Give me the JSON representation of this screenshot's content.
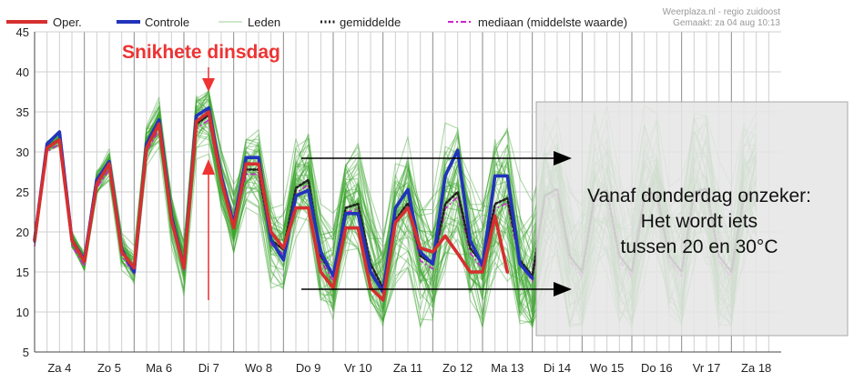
{
  "credit": {
    "line1": "Weerplaza.nl - regio zuidoost",
    "line2": "Gemaakt: za 04 aug 10:13"
  },
  "legend": [
    {
      "label": "Oper.",
      "style": "oper"
    },
    {
      "label": "Controle",
      "style": "controle"
    },
    {
      "label": "Leden",
      "style": "leden"
    },
    {
      "label": "gemiddelde",
      "style": "gemiddelde"
    },
    {
      "label": "mediaan (middelste waarde)",
      "style": "mediaan"
    }
  ],
  "colors": {
    "oper": "#d62f2f",
    "controle": "#2233bb",
    "leden": "#3aa52a",
    "gemiddelde": "#222222",
    "mediaan": "#cc22cc",
    "annotation": "#ee3333",
    "arrow": "#000000"
  },
  "annotations": {
    "title": "Snikhete dinsdag",
    "box_lines": [
      "Vanaf donderdag onzeker:",
      "Het wordt iets",
      "tussen 20 en 30°C"
    ]
  },
  "chart_data": {
    "type": "line",
    "title": "",
    "xlabel": "",
    "ylabel": "",
    "ylim": [
      5,
      45
    ],
    "yticks": [
      5,
      10,
      15,
      20,
      25,
      30,
      35,
      40,
      45
    ],
    "grid": true,
    "legend_position": "top",
    "x_unit": "days since Za 4 00:00 (6-hour steps)",
    "day_labels": [
      "Za 4",
      "Zo 5",
      "Ma 6",
      "Di 7",
      "Wo 8",
      "Do 9",
      "Vr 10",
      "Za 11",
      "Zo 12",
      "Ma 13",
      "Di 14",
      "Wo 15",
      "Do 16",
      "Vr 17",
      "Za 18"
    ],
    "series": [
      {
        "name": "Oper.",
        "x": [
          0,
          0.25,
          0.5,
          0.75,
          1,
          1.25,
          1.5,
          1.75,
          2,
          2.25,
          2.5,
          2.75,
          3,
          3.25,
          3.5,
          3.75,
          4,
          4.25,
          4.5,
          4.75,
          5,
          5.25,
          5.5,
          5.75,
          6,
          6.25,
          6.5,
          6.75,
          7,
          7.25,
          7.5,
          7.75,
          8,
          8.25,
          8.5,
          8.75,
          9,
          9.25,
          9.5
        ],
        "values": [
          19,
          30.5,
          31.5,
          19,
          16.3,
          26,
          28.5,
          17.5,
          15.5,
          30.5,
          33.5,
          21.5,
          15.5,
          33.8,
          35,
          26.5,
          20.5,
          28.5,
          28.5,
          20,
          18,
          23,
          23,
          15,
          13,
          20.5,
          20.5,
          13,
          11.5,
          21.2,
          23,
          18,
          17.5,
          19.5,
          17.3,
          15,
          15,
          22,
          15
        ]
      },
      {
        "name": "Controle",
        "x": [
          0,
          0.25,
          0.5,
          0.75,
          1,
          1.25,
          1.5,
          1.75,
          2,
          2.25,
          2.5,
          2.75,
          3,
          3.25,
          3.5,
          3.75,
          4,
          4.25,
          4.5,
          4.75,
          5,
          5.25,
          5.5,
          5.75,
          6,
          6.25,
          6.5,
          6.75,
          7,
          7.25,
          7.5,
          7.75,
          8,
          8.25,
          8.5,
          8.75,
          9,
          9.25,
          9.5,
          9.75,
          10
        ],
        "values": [
          19,
          31,
          32.5,
          19,
          16.5,
          26.5,
          28.8,
          17.8,
          15,
          31,
          34,
          22,
          15.5,
          34.5,
          35.5,
          27,
          21,
          29.3,
          29.3,
          19,
          16.5,
          24.5,
          25.2,
          17.5,
          14.5,
          22.3,
          22.3,
          15,
          12.5,
          23,
          25.3,
          17.5,
          16,
          27,
          30.2,
          19,
          15.8,
          27,
          27,
          16,
          14.2
        ]
      },
      {
        "name": "gemiddelde",
        "x": [
          0,
          0.25,
          0.5,
          0.75,
          1,
          1.25,
          1.5,
          1.75,
          2,
          2.25,
          2.5,
          2.75,
          3,
          3.25,
          3.5,
          3.75,
          4,
          4.25,
          4.5,
          4.75,
          5,
          5.25,
          5.5,
          5.75,
          6,
          6.25,
          6.5,
          6.75,
          7,
          7.25,
          7.5,
          7.75,
          8,
          8.25,
          8.5,
          8.75,
          9,
          9.25,
          9.5,
          9.75,
          10,
          10.25,
          10.5,
          10.75,
          11,
          11.25,
          11.5,
          11.75,
          12,
          12.25,
          12.5,
          12.75,
          13,
          13.25,
          13.5,
          13.75,
          14,
          14.25,
          14.5
        ],
        "values": [
          18.8,
          30.6,
          31.6,
          18.9,
          16.3,
          26.1,
          28.4,
          17.6,
          15.4,
          30.7,
          33.4,
          21.6,
          15.7,
          33.5,
          34.6,
          26.5,
          21,
          27.8,
          27.8,
          19,
          17.8,
          25.5,
          26.5,
          17,
          14.5,
          23,
          23.5,
          16,
          13,
          21.5,
          23.6,
          17,
          16,
          23.5,
          25,
          18,
          16,
          23.5,
          24.2,
          16.5,
          14.5,
          24.5,
          25.4,
          17,
          15,
          24.5,
          25.2,
          17,
          15,
          24.5,
          25,
          17,
          15,
          25,
          25.4,
          17,
          15,
          24.5,
          25
        ]
      }
    ]
  }
}
